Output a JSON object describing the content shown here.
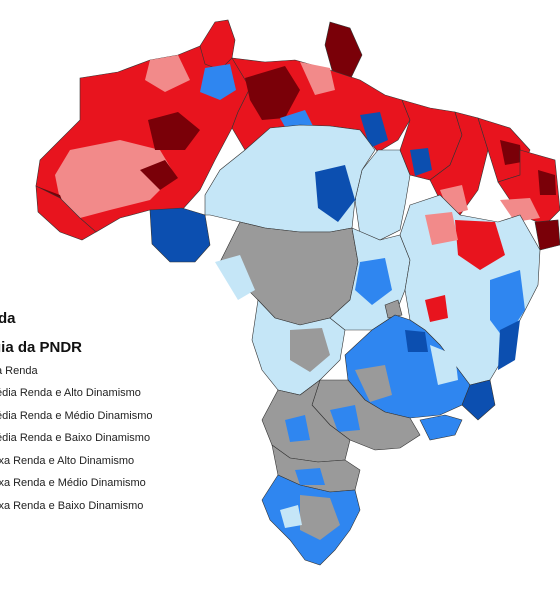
{
  "legend": {
    "title_1": "da",
    "title_2": "gia da PNDR",
    "items": [
      {
        "label": "a Renda",
        "color": "#9a9a9a"
      },
      {
        "label": "édia Renda e Alto Dinamismo",
        "color": "#c5e6f7"
      },
      {
        "label": "édia Renda e Médio Dinamismo",
        "color": "#2f86f0"
      },
      {
        "label": "édia Renda e Baixo Dinamismo",
        "color": "#0c4fb0"
      },
      {
        "label": "ixa Renda e Alto Dinamismo",
        "color": "#f28a8a"
      },
      {
        "label": "ixa Renda e Médio Dinamismo",
        "color": "#e8141e"
      },
      {
        "label": "ixa Renda e Baixo Dinamismo",
        "color": "#7a0008"
      }
    ]
  },
  "colors": {
    "high_income": "#9a9a9a",
    "mid_high_dyn": "#c5e6f7",
    "mid_mid_dyn": "#2f86f0",
    "mid_low_dyn": "#0c4fb0",
    "low_high_dyn": "#f28a8a",
    "low_mid_dyn": "#e8141e",
    "low_low_dyn": "#7a0008",
    "border": "#333333"
  }
}
